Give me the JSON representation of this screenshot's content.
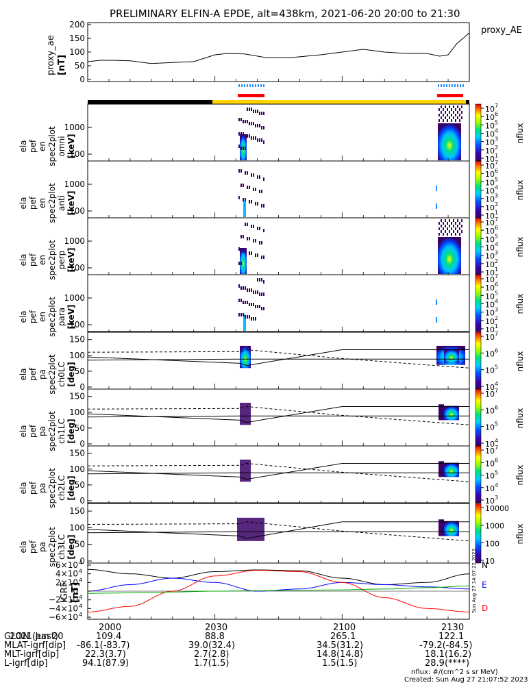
{
  "title": "PRELIMINARY ELFIN-A EPDE, alt=438km, 2021-06-20 20:00 to 21:30",
  "proxy": {
    "label": "proxy_ae",
    "unit": "[nT]",
    "legend": "proxy_AE",
    "yticks": [
      "200",
      "150",
      "100",
      "50",
      "0"
    ]
  },
  "spectrograms": [
    {
      "l1": "ela",
      "l2": "pef",
      "l3": "en",
      "l4": "spec2plot",
      "l5": "omni",
      "unit": "[keV]",
      "yticks": [
        "1000",
        "100"
      ]
    },
    {
      "l1": "ela",
      "l2": "pef",
      "l3": "en",
      "l4": "spec2plot",
      "l5": "anti",
      "unit": "[keV]",
      "yticks": [
        "1000",
        "100"
      ]
    },
    {
      "l1": "ela",
      "l2": "pef",
      "l3": "en",
      "l4": "spec2plot",
      "l5": "perp",
      "unit": "[keV]",
      "yticks": [
        "1000",
        "100"
      ]
    },
    {
      "l1": "ela",
      "l2": "pef",
      "l3": "en",
      "l4": "spec2plot",
      "l5": "para",
      "unit": "[keV]",
      "yticks": [
        "1000",
        "100"
      ]
    }
  ],
  "pitch_angle": [
    {
      "l1": "ela",
      "l2": "pef",
      "l3": "pa",
      "l4": "spec2plot",
      "l5": "ch0LC",
      "unit": "[deg]",
      "yticks": [
        "150",
        "100",
        "50",
        "0"
      ]
    },
    {
      "l1": "ela",
      "l2": "pef",
      "l3": "pa",
      "l4": "spec2plot",
      "l5": "ch1LC",
      "unit": "[deg]",
      "yticks": [
        "150",
        "100",
        "50",
        "0"
      ]
    },
    {
      "l1": "ela",
      "l2": "pef",
      "l3": "pa",
      "l4": "spec2plot",
      "l5": "ch2LC",
      "unit": "[deg]",
      "yticks": [
        "150",
        "100",
        "50",
        "0"
      ]
    },
    {
      "l1": "ela",
      "l2": "pef",
      "l3": "pa",
      "l4": "spec2plot",
      "l5": "ch3LC",
      "unit": "[deg]",
      "yticks": [
        "150",
        "100",
        "50",
        "0"
      ]
    }
  ],
  "colorbars": {
    "nflux_label": "nflux",
    "spec_ticks": [
      "10",
      "10",
      "10",
      "10",
      "10",
      "10",
      "10"
    ],
    "spec_exps": [
      "7",
      "6",
      "5",
      "4",
      "3",
      "2",
      "1"
    ],
    "pa0_ticks": [
      "10",
      "10",
      "10",
      "10"
    ],
    "pa0_exps": [
      "7",
      "6",
      "5",
      "4"
    ],
    "pa1_ticks": [
      "10",
      "10",
      "10",
      "10"
    ],
    "pa1_exps": [
      "7",
      "6",
      "5",
      "4"
    ],
    "pa2_ticks": [
      "10",
      "10",
      "10",
      "10",
      "10"
    ],
    "pa2_exps": [
      "7",
      "6",
      "5",
      "4",
      "3"
    ],
    "pa3_ticks": [
      "10000",
      "1000",
      "100",
      "10"
    ]
  },
  "igrf": {
    "label": "IGRF",
    "unit": "[nT]",
    "yticks": [
      "6×10",
      "4×10",
      "2×10",
      "0",
      "−2×10",
      "−4×10",
      "−6×10"
    ],
    "ytick_exp": "4",
    "legend": [
      "N",
      "E",
      "D"
    ],
    "colors": {
      "N": "#000000",
      "E": "#0000ff",
      "D": "#ff0000",
      "total": "#00aa00"
    },
    "stamp": "Sun Aug 27 14:07:22 2023"
  },
  "footer": {
    "rows": [
      {
        "label": "2021 Jun 20",
        "values": [
          "2000",
          "2030",
          "2100",
          "2130"
        ]
      },
      {
        "label": "GLON (east)",
        "values": [
          "109.4",
          "88.8",
          "265.1",
          "122.1"
        ]
      },
      {
        "label": "MLAT-igrf[dip]",
        "values": [
          "-86.1(-83.7)",
          "39.0(32.4)",
          "34.5(31.2)",
          "-79.2(-84.5)"
        ]
      },
      {
        "label": "MLT-igrf[dip]",
        "values": [
          "22.3(3.7)",
          "2.7(2.8)",
          "14.8(14.8)",
          "18.1(16.2)"
        ]
      },
      {
        "label": "L-igrf[dip]",
        "values": [
          "94.1(87.9)",
          "1.7(1.5)",
          "1.5(1.5)",
          "28.9(****)"
        ]
      }
    ],
    "units_note": "nflux: #/(cm^2 s sr MeV)",
    "created": "Created: Sun Aug 27 21:07:52 2023"
  },
  "chart_data": {
    "type": "line",
    "title": "PRELIMINARY ELFIN-A EPDE, alt=438km, 2021-06-20 20:00 to 21:30",
    "x_range_minutes": [
      0,
      90
    ],
    "proxy_ae": {
      "ylim": [
        0,
        200
      ],
      "x": [
        0,
        3,
        6,
        10,
        15,
        20,
        25,
        30,
        33,
        37,
        42,
        48,
        55,
        60,
        65,
        70,
        75,
        80,
        83,
        85,
        87,
        90
      ],
      "values": [
        65,
        70,
        70,
        68,
        58,
        62,
        65,
        90,
        95,
        93,
        80,
        80,
        90,
        100,
        110,
        100,
        95,
        95,
        85,
        90,
        130,
        170
      ]
    },
    "pa_lc_lines": {
      "ylim": [
        0,
        180
      ],
      "x": [
        0,
        36,
        37.5,
        60,
        90
      ],
      "solid_upper": [
        95,
        75,
        68,
        118,
        118
      ],
      "solid_lower": [
        85,
        88,
        88,
        88,
        88
      ],
      "dashed": [
        110,
        112,
        118,
        90,
        60
      ]
    },
    "igrf_components": {
      "ylim": [
        -60000,
        60000
      ],
      "x": [
        0,
        10,
        20,
        30,
        40,
        50,
        60,
        70,
        80,
        90
      ],
      "N": [
        50000,
        40000,
        30000,
        45000,
        49000,
        47000,
        30000,
        15000,
        20000,
        40000
      ],
      "E": [
        0,
        15000,
        30000,
        20000,
        0,
        5000,
        20000,
        15000,
        10000,
        5000
      ],
      "D": [
        -48000,
        -35000,
        0,
        35000,
        48000,
        45000,
        20000,
        -15000,
        -40000,
        -48000
      ],
      "total": [
        -5000,
        -4000,
        -2000,
        0,
        1000,
        2000,
        3000,
        5000,
        8000,
        12000
      ]
    },
    "science_zones_minutes": [
      [
        35,
        39.5
      ],
      [
        83,
        87.5
      ]
    ]
  }
}
